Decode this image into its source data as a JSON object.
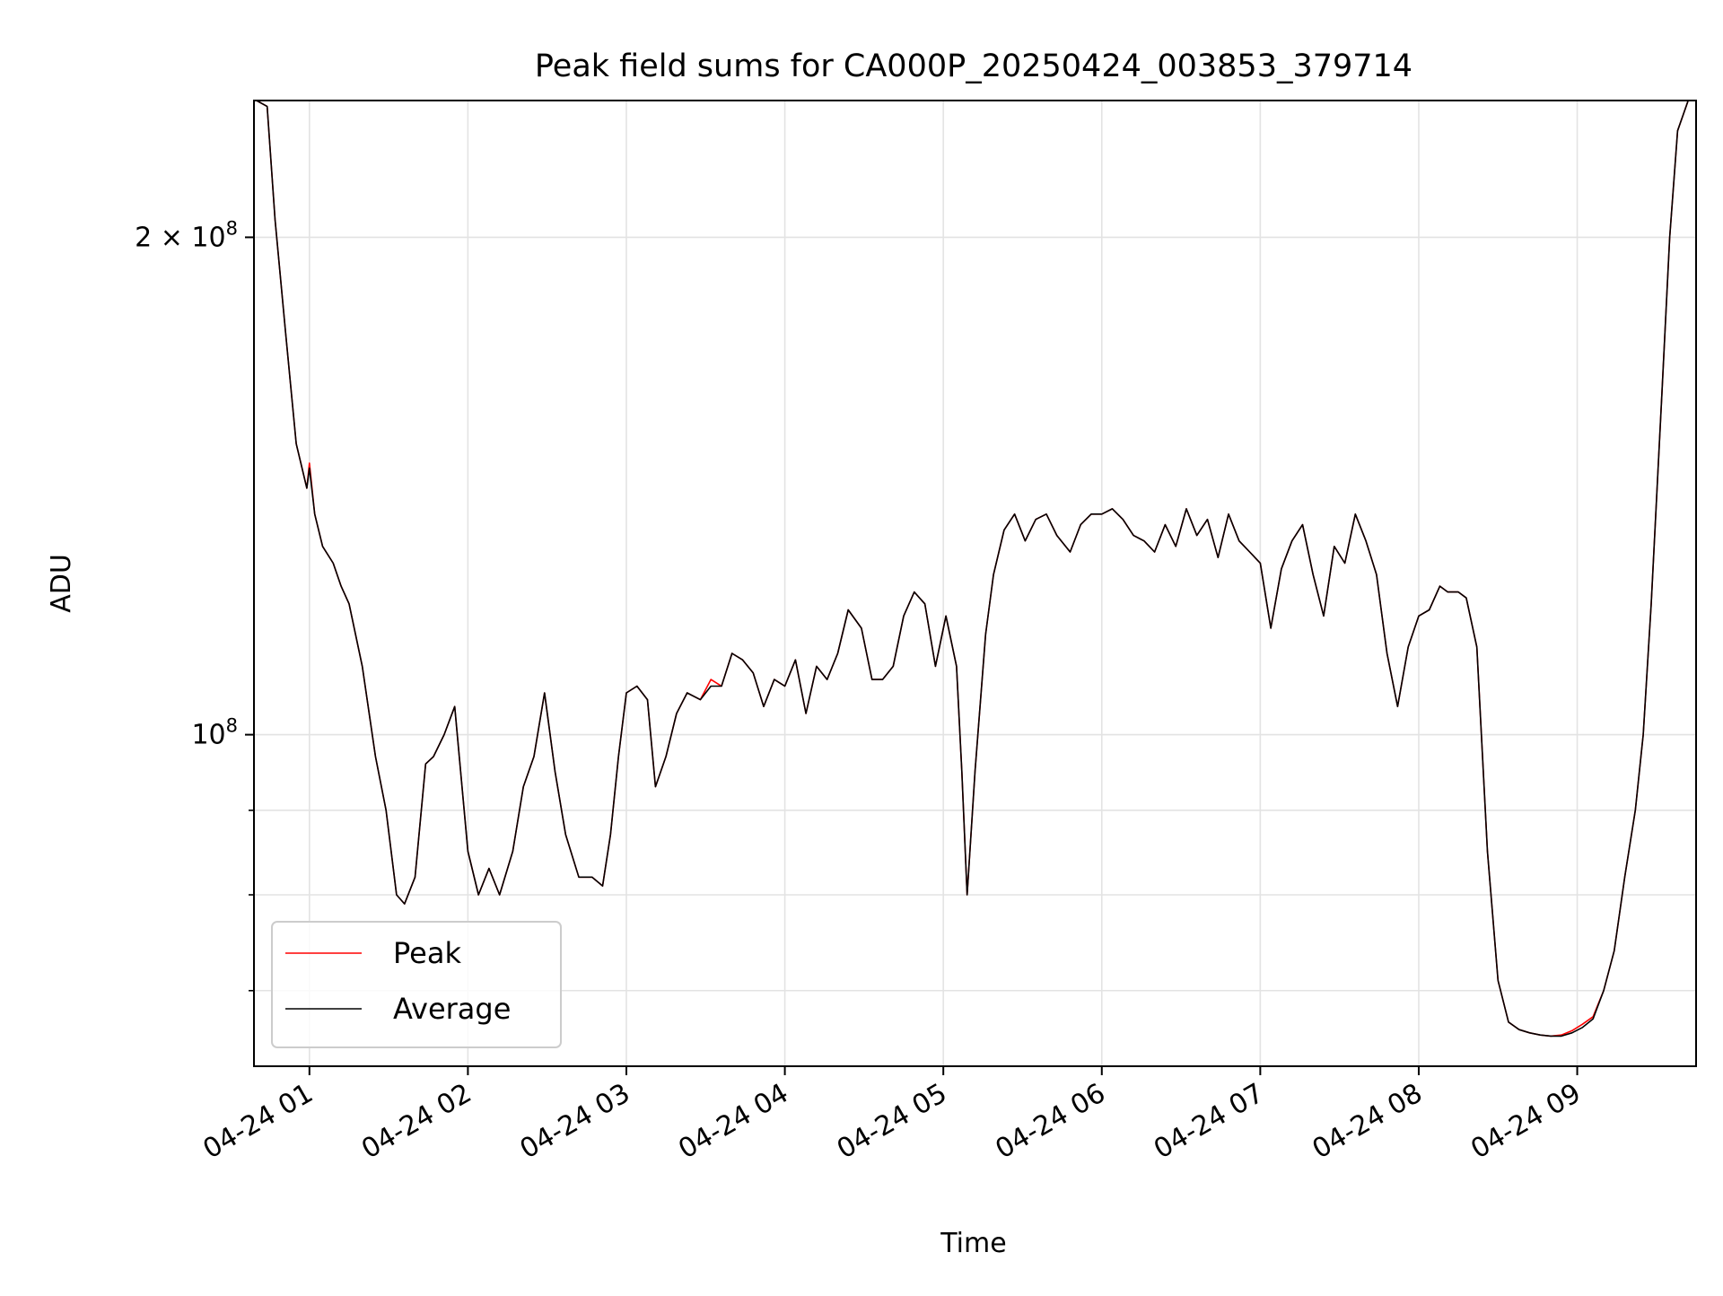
{
  "chart_data": {
    "type": "line",
    "title": "Peak field sums for CA000P_20250424_003853_379714",
    "xlabel": "Time",
    "ylabel": "ADU",
    "yscale": "log",
    "ylim": [
      63000000,
      242000000
    ],
    "xlim": [
      "2025-04-24 00:39",
      "2025-04-24 09:45"
    ],
    "grid": true,
    "legend_position": "lower-left",
    "x_ticks": [
      {
        "label": "04-24 01",
        "x": "2025-04-24 01:00"
      },
      {
        "label": "04-24 02",
        "x": "2025-04-24 02:00"
      },
      {
        "label": "04-24 03",
        "x": "2025-04-24 03:00"
      },
      {
        "label": "04-24 04",
        "x": "2025-04-24 04:00"
      },
      {
        "label": "04-24 05",
        "x": "2025-04-24 05:00"
      },
      {
        "label": "04-24 06",
        "x": "2025-04-24 06:00"
      },
      {
        "label": "04-24 07",
        "x": "2025-04-24 07:00"
      },
      {
        "label": "04-24 08",
        "x": "2025-04-24 08:00"
      },
      {
        "label": "04-24 09",
        "x": "2025-04-24 09:00"
      }
    ],
    "y_major_ticks": [
      {
        "value": 100000000,
        "base": "10",
        "exp": "8"
      },
      {
        "value": 200000000,
        "mant": "2",
        "times": "×",
        "base": "10",
        "exp": "8"
      }
    ],
    "y_minor_ticks": [
      70000000,
      80000000,
      90000000
    ],
    "x": [
      "2025-04-24 00:40",
      "2025-04-24 00:44",
      "2025-04-24 00:47",
      "2025-04-24 00:51",
      "2025-04-24 00:55",
      "2025-04-24 00:59",
      "2025-04-24 01:00",
      "2025-04-24 01:02",
      "2025-04-24 01:05",
      "2025-04-24 01:09",
      "2025-04-24 01:12",
      "2025-04-24 01:15",
      "2025-04-24 01:20",
      "2025-04-24 01:25",
      "2025-04-24 01:29",
      "2025-04-24 01:33",
      "2025-04-24 01:36",
      "2025-04-24 01:40",
      "2025-04-24 01:44",
      "2025-04-24 01:47",
      "2025-04-24 01:51",
      "2025-04-24 01:55",
      "2025-04-24 02:00",
      "2025-04-24 02:04",
      "2025-04-24 02:08",
      "2025-04-24 02:12",
      "2025-04-24 02:17",
      "2025-04-24 02:21",
      "2025-04-24 02:25",
      "2025-04-24 02:29",
      "2025-04-24 02:33",
      "2025-04-24 02:37",
      "2025-04-24 02:42",
      "2025-04-24 02:47",
      "2025-04-24 02:51",
      "2025-04-24 02:54",
      "2025-04-24 02:57",
      "2025-04-24 03:00",
      "2025-04-24 03:04",
      "2025-04-24 03:08",
      "2025-04-24 03:11",
      "2025-04-24 03:15",
      "2025-04-24 03:19",
      "2025-04-24 03:23",
      "2025-04-24 03:28",
      "2025-04-24 03:32",
      "2025-04-24 03:36",
      "2025-04-24 03:40",
      "2025-04-24 03:44",
      "2025-04-24 03:48",
      "2025-04-24 03:52",
      "2025-04-24 03:56",
      "2025-04-24 04:00",
      "2025-04-24 04:04",
      "2025-04-24 04:08",
      "2025-04-24 04:12",
      "2025-04-24 04:16",
      "2025-04-24 04:20",
      "2025-04-24 04:24",
      "2025-04-24 04:29",
      "2025-04-24 04:33",
      "2025-04-24 04:37",
      "2025-04-24 04:41",
      "2025-04-24 04:45",
      "2025-04-24 04:49",
      "2025-04-24 04:53",
      "2025-04-24 04:57",
      "2025-04-24 05:01",
      "2025-04-24 05:05",
      "2025-04-24 05:07",
      "2025-04-24 05:09",
      "2025-04-24 05:12",
      "2025-04-24 05:16",
      "2025-04-24 05:19",
      "2025-04-24 05:23",
      "2025-04-24 05:27",
      "2025-04-24 05:31",
      "2025-04-24 05:35",
      "2025-04-24 05:39",
      "2025-04-24 05:43",
      "2025-04-24 05:48",
      "2025-04-24 05:52",
      "2025-04-24 05:56",
      "2025-04-24 06:00",
      "2025-04-24 06:04",
      "2025-04-24 06:08",
      "2025-04-24 06:12",
      "2025-04-24 06:16",
      "2025-04-24 06:20",
      "2025-04-24 06:24",
      "2025-04-24 06:28",
      "2025-04-24 06:32",
      "2025-04-24 06:36",
      "2025-04-24 06:40",
      "2025-04-24 06:44",
      "2025-04-24 06:48",
      "2025-04-24 06:52",
      "2025-04-24 06:56",
      "2025-04-24 07:00",
      "2025-04-24 07:04",
      "2025-04-24 07:08",
      "2025-04-24 07:12",
      "2025-04-24 07:16",
      "2025-04-24 07:20",
      "2025-04-24 07:24",
      "2025-04-24 07:28",
      "2025-04-24 07:32",
      "2025-04-24 07:36",
      "2025-04-24 07:40",
      "2025-04-24 07:44",
      "2025-04-24 07:48",
      "2025-04-24 07:52",
      "2025-04-24 07:56",
      "2025-04-24 08:00",
      "2025-04-24 08:04",
      "2025-04-24 08:08",
      "2025-04-24 08:11",
      "2025-04-24 08:15",
      "2025-04-24 08:18",
      "2025-04-24 08:22",
      "2025-04-24 08:26",
      "2025-04-24 08:30",
      "2025-04-24 08:34",
      "2025-04-24 08:38",
      "2025-04-24 08:42",
      "2025-04-24 08:46",
      "2025-04-24 08:50",
      "2025-04-24 08:54",
      "2025-04-24 08:58",
      "2025-04-24 09:02",
      "2025-04-24 09:06",
      "2025-04-24 09:10",
      "2025-04-24 09:14",
      "2025-04-24 09:18",
      "2025-04-24 09:22",
      "2025-04-24 09:25",
      "2025-04-24 09:28",
      "2025-04-24 09:32",
      "2025-04-24 09:35",
      "2025-04-24 09:38",
      "2025-04-24 09:42"
    ],
    "series": [
      {
        "name": "Peak",
        "color": "#ff0000",
        "values": [
          242000000,
          240000000,
          205000000,
          175000000,
          150000000,
          141000000,
          146000000,
          136000000,
          130000000,
          127000000,
          123000000,
          120000000,
          110000000,
          97000000,
          90000000,
          80000000,
          79000000,
          82000000,
          96000000,
          97000000,
          100000000,
          104000000,
          85000000,
          80000000,
          83000000,
          80000000,
          85000000,
          93000000,
          97000000,
          106000000,
          95000000,
          87000000,
          82000000,
          82000000,
          81000000,
          87000000,
          97000000,
          106000000,
          107000000,
          105000000,
          93000000,
          97000000,
          103000000,
          106000000,
          105000000,
          108000000,
          107000000,
          112000000,
          111000000,
          109000000,
          104000000,
          108000000,
          107000000,
          111000000,
          103000000,
          110000000,
          108000000,
          112000000,
          119000000,
          116000000,
          108000000,
          108000000,
          110000000,
          118000000,
          122000000,
          120000000,
          110000000,
          118000000,
          110000000,
          95000000,
          80000000,
          95000000,
          115000000,
          125000000,
          133000000,
          136000000,
          131000000,
          135000000,
          136000000,
          132000000,
          129000000,
          134000000,
          136000000,
          136000000,
          137000000,
          135000000,
          132000000,
          131000000,
          129000000,
          134000000,
          130000000,
          137000000,
          132000000,
          135000000,
          128000000,
          136000000,
          131000000,
          129000000,
          127000000,
          116000000,
          126000000,
          131000000,
          134000000,
          125000000,
          118000000,
          130000000,
          127000000,
          136000000,
          131000000,
          125000000,
          112000000,
          104000000,
          113000000,
          118000000,
          119000000,
          123000000,
          122000000,
          122000000,
          121000000,
          113000000,
          85000000,
          71000000,
          67000000,
          66300000,
          66000000,
          65800000,
          65700000,
          65800000,
          66200000,
          66800000,
          67500000,
          70000000,
          74000000,
          82000000,
          90000000,
          100000000,
          120000000,
          160000000,
          200000000,
          232000000,
          242000000
        ]
      },
      {
        "name": "Average",
        "color": "#000000",
        "values": [
          242000000,
          240000000,
          205000000,
          175000000,
          150000000,
          141000000,
          145000000,
          136000000,
          130000000,
          127000000,
          123000000,
          120000000,
          110000000,
          97000000,
          90000000,
          80000000,
          79000000,
          82000000,
          96000000,
          97000000,
          100000000,
          104000000,
          85000000,
          80000000,
          83000000,
          80000000,
          85000000,
          93000000,
          97000000,
          106000000,
          95000000,
          87000000,
          82000000,
          82000000,
          81000000,
          87000000,
          97000000,
          106000000,
          107000000,
          105000000,
          93000000,
          97000000,
          103000000,
          106000000,
          105000000,
          107000000,
          107000000,
          112000000,
          111000000,
          109000000,
          104000000,
          108000000,
          107000000,
          111000000,
          103000000,
          110000000,
          108000000,
          112000000,
          119000000,
          116000000,
          108000000,
          108000000,
          110000000,
          118000000,
          122000000,
          120000000,
          110000000,
          118000000,
          110000000,
          95000000,
          80000000,
          95000000,
          115000000,
          125000000,
          133000000,
          136000000,
          131000000,
          135000000,
          136000000,
          132000000,
          129000000,
          134000000,
          136000000,
          136000000,
          137000000,
          135000000,
          132000000,
          131000000,
          129000000,
          134000000,
          130000000,
          137000000,
          132000000,
          135000000,
          128000000,
          136000000,
          131000000,
          129000000,
          127000000,
          116000000,
          126000000,
          131000000,
          134000000,
          125000000,
          118000000,
          130000000,
          127000000,
          136000000,
          131000000,
          125000000,
          112000000,
          104000000,
          113000000,
          118000000,
          119000000,
          123000000,
          122000000,
          122000000,
          121000000,
          113000000,
          85000000,
          71000000,
          67000000,
          66300000,
          66000000,
          65800000,
          65700000,
          65700000,
          66000000,
          66500000,
          67300000,
          70000000,
          74000000,
          82000000,
          90000000,
          100000000,
          120000000,
          160000000,
          200000000,
          232000000,
          242000000
        ]
      }
    ]
  }
}
